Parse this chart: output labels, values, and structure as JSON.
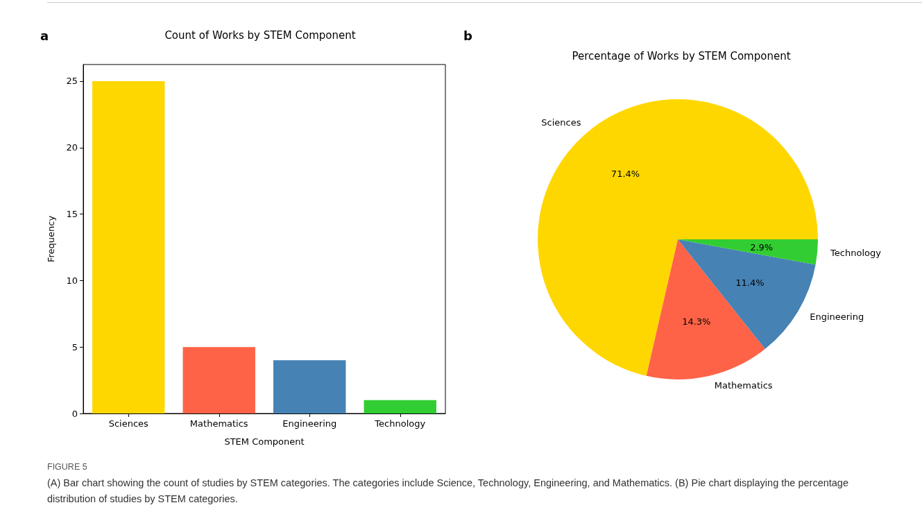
{
  "chart_data": [
    {
      "type": "bar",
      "title": "Count of Works by STEM Component",
      "xlabel": "STEM Component",
      "ylabel": "Frequency",
      "categories": [
        "Sciences",
        "Mathematics",
        "Engineering",
        "Technology"
      ],
      "values": [
        25,
        5,
        4,
        1
      ],
      "colors": [
        "#ffd700",
        "#ff6347",
        "#4682b4",
        "#32cd32"
      ],
      "ylim": [
        0,
        26.25
      ],
      "yticks": [
        0,
        5,
        10,
        15,
        20,
        25
      ],
      "grid": false,
      "legend": false,
      "annotations": [
        "a"
      ]
    },
    {
      "type": "pie",
      "title": "Percentage of Works by STEM Component",
      "categories": [
        "Sciences",
        "Mathematics",
        "Engineering",
        "Technology"
      ],
      "values": [
        71.4,
        14.3,
        11.4,
        2.9
      ],
      "value_labels": [
        "71.4%",
        "14.3%",
        "11.4%",
        "2.9%"
      ],
      "colors": [
        "#ffd700",
        "#ff6347",
        "#4682b4",
        "#32cd32"
      ],
      "legend": false,
      "annotations": [
        "b",
        "FIGURE 5",
        "(A) Bar chart showing the count of studies by STEM categories. The categories include Science, Technology, Engineering, and Mathematics. (B) Pie chart displaying the percentage distribution of studies by STEM categories."
      ]
    }
  ]
}
